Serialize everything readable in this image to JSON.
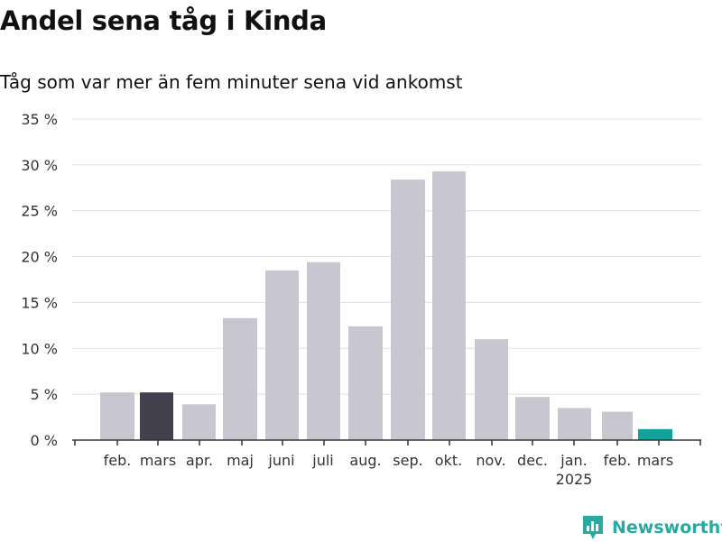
{
  "title": "Andel sena tåg i Kinda",
  "subtitle": "Tåg som var mer än fem minuter sena vid ankomst",
  "brand": "Newsworthy",
  "colors": {
    "bar_default": "#c8c7d1",
    "bar_highlight": "#43414e",
    "bar_latest": "#14a39a",
    "grid": "#dddddd",
    "axis": "#333333",
    "brand": "#2aa9a0"
  },
  "chart_data": {
    "type": "bar",
    "categories": [
      "feb.",
      "mars",
      "apr.",
      "maj",
      "juni",
      "juli",
      "aug.",
      "sep.",
      "okt.",
      "nov.",
      "dec.",
      "jan.",
      "feb.",
      "mars"
    ],
    "year_labels": [
      "",
      "",
      "",
      "",
      "",
      "",
      "",
      "",
      "",
      "",
      "",
      "2025",
      "",
      ""
    ],
    "values": [
      5.2,
      5.2,
      3.9,
      13.3,
      18.5,
      19.4,
      12.4,
      28.4,
      29.3,
      11.0,
      4.7,
      3.5,
      3.1,
      1.2
    ],
    "highlight": [
      "default",
      "highlight",
      "default",
      "default",
      "default",
      "default",
      "default",
      "default",
      "default",
      "default",
      "default",
      "default",
      "default",
      "latest"
    ],
    "ylim": [
      0,
      35
    ],
    "yticks": [
      0,
      5,
      10,
      15,
      20,
      25,
      30,
      35
    ],
    "ytick_labels": [
      "0 %",
      "5 %",
      "10 %",
      "15 %",
      "20 %",
      "25 %",
      "30 %",
      "35 %"
    ],
    "grid": true
  }
}
